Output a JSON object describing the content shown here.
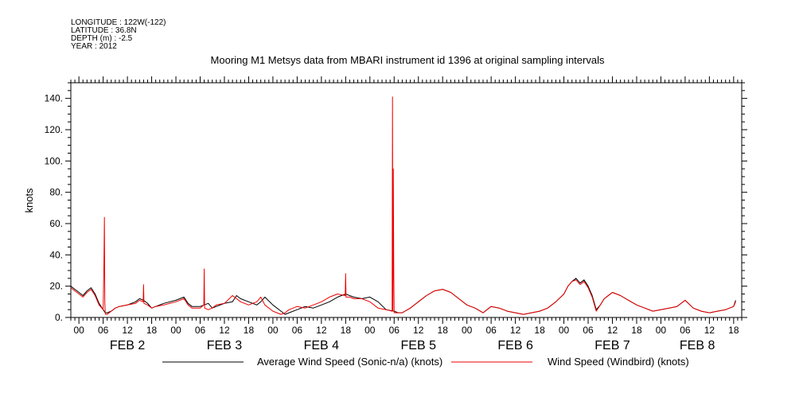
{
  "header": {
    "longitude": "LONGITUDE : 122W(-122)",
    "latitude": "LATITUDE : 36.8N",
    "depth": "DEPTH (m) : -2.5",
    "year": "YEAR : 2012"
  },
  "chart_data": {
    "type": "line",
    "title": "Mooring M1 Metsys data from MBARI instrument id 1396 at original sampling intervals",
    "ylabel": "knots",
    "ylim": [
      0,
      150
    ],
    "yticks": [
      0,
      20,
      40,
      60,
      80,
      100,
      120,
      140
    ],
    "ytick_labels": [
      "0.",
      "20.",
      "40.",
      "60.",
      "80.",
      "100.",
      "120.",
      "140."
    ],
    "xlim_hours": [
      -2,
      164
    ],
    "x_unit": "hours since 2012-02-02 00:00",
    "xtick_hours": [
      0,
      6,
      12,
      18,
      24,
      30,
      36,
      42,
      48,
      54,
      60,
      66,
      72,
      78,
      84,
      90,
      96,
      102,
      108,
      114,
      120,
      126,
      132,
      138,
      144,
      150,
      156,
      162
    ],
    "xtick_labels": [
      "00",
      "06",
      "12",
      "18",
      "00",
      "06",
      "12",
      "18",
      "00",
      "06",
      "12",
      "18",
      "00",
      "06",
      "12",
      "18",
      "00",
      "06",
      "12",
      "18",
      "00",
      "06",
      "12",
      "18",
      "00",
      "06",
      "12",
      "18"
    ],
    "day_labels": [
      {
        "label": "FEB  2",
        "center_hour": 12
      },
      {
        "label": "FEB  3",
        "center_hour": 36
      },
      {
        "label": "FEB  4",
        "center_hour": 60
      },
      {
        "label": "FEB  5",
        "center_hour": 84
      },
      {
        "label": "FEB  6",
        "center_hour": 108
      },
      {
        "label": "FEB  7",
        "center_hour": 132
      },
      {
        "label": "FEB  8",
        "center_hour": 153
      }
    ],
    "grid": false,
    "legend": "bottom",
    "series": [
      {
        "name": "Average Wind Speed (Sonic-n/a) (knots)",
        "color": "#000000",
        "x": [
          -2,
          -1,
          0,
          1,
          2,
          3,
          4,
          5,
          6,
          6.5,
          7,
          8,
          9,
          10,
          12,
          14,
          15,
          16,
          17,
          18,
          19,
          21,
          24,
          26,
          27,
          28,
          30,
          32,
          33,
          34,
          36,
          38,
          39,
          40,
          42,
          44,
          45,
          46,
          48,
          50,
          51,
          52,
          54,
          56,
          58,
          60,
          62,
          64,
          66,
          67,
          68,
          70,
          72,
          74,
          76,
          78,
          79,
          80,
          82,
          84,
          86,
          88,
          90,
          92,
          94,
          96,
          98,
          100,
          102,
          104,
          106,
          108,
          110,
          112,
          114,
          116,
          118,
          120,
          121,
          122,
          123,
          124,
          125,
          126,
          127,
          128,
          129,
          130,
          132,
          134,
          136,
          138,
          140,
          142,
          144,
          146,
          148,
          150,
          152,
          154,
          156,
          158,
          160,
          162,
          162.5
        ],
        "y": [
          20,
          18,
          16,
          14,
          17,
          19,
          15,
          9,
          5,
          3,
          3,
          4,
          6,
          7,
          8,
          10,
          12,
          11,
          9,
          6,
          7,
          9,
          11,
          13,
          9,
          7,
          7,
          9,
          6,
          7,
          9,
          10,
          14,
          12,
          10,
          8,
          10,
          13,
          8,
          4,
          2,
          3,
          5,
          7,
          6,
          8,
          10,
          13,
          15,
          14,
          13,
          12,
          13,
          10,
          5,
          4,
          3,
          3,
          6,
          10,
          14,
          17,
          18,
          16,
          12,
          8,
          6,
          3,
          7,
          6,
          4,
          3,
          2,
          3,
          4,
          6,
          10,
          15,
          20,
          23,
          25,
          22,
          24,
          20,
          14,
          5,
          8,
          12,
          16,
          14,
          11,
          8,
          6,
          4,
          5,
          6,
          7,
          11,
          6,
          4,
          3,
          4,
          5,
          7,
          11
        ]
      },
      {
        "name": "Wind Speed (Windbird) (knots)",
        "color": "#ee0000",
        "x": [
          -2,
          -1,
          0,
          1,
          2,
          3,
          4,
          5,
          6,
          6.2,
          6.3,
          6.4,
          6.5,
          6.6,
          7,
          8,
          9,
          10,
          12,
          14,
          15,
          15.9,
          16,
          16.1,
          17,
          18,
          19,
          21,
          24,
          26,
          27,
          28,
          30,
          30.9,
          31,
          31.1,
          32,
          33,
          34,
          36,
          38,
          39,
          40,
          42,
          44,
          45,
          46,
          48,
          50,
          51,
          52,
          54,
          56,
          58,
          60,
          62,
          64,
          65.9,
          66,
          66.1,
          67,
          68,
          70,
          72,
          74,
          76,
          77.5,
          77.6,
          77.7,
          77.8,
          77.9,
          78,
          79,
          80,
          82,
          84,
          86,
          88,
          90,
          92,
          94,
          96,
          98,
          100,
          102,
          104,
          106,
          108,
          110,
          112,
          114,
          116,
          118,
          120,
          121,
          122,
          123,
          124,
          125,
          126,
          127,
          128,
          129,
          130,
          132,
          134,
          136,
          138,
          140,
          142,
          144,
          146,
          148,
          150,
          152,
          154,
          156,
          158,
          160,
          162,
          162.5
        ],
        "y": [
          19,
          17,
          15,
          13,
          16,
          18,
          14,
          8,
          5,
          34,
          64,
          10,
          3,
          2,
          2,
          4,
          6,
          7,
          8,
          9,
          11,
          10,
          21,
          9,
          8,
          6,
          7,
          8,
          10,
          12,
          8,
          6,
          6,
          8,
          31,
          6,
          5,
          6,
          8,
          9,
          14,
          12,
          10,
          8,
          10,
          13,
          8,
          4,
          2,
          3,
          5,
          7,
          6,
          8,
          10,
          13,
          15,
          14,
          28,
          13,
          13,
          12,
          12,
          10,
          6,
          5,
          4,
          141,
          4,
          95,
          28,
          3,
          3,
          3,
          6,
          10,
          14,
          17,
          18,
          16,
          12,
          8,
          6,
          3,
          7,
          6,
          4,
          3,
          2,
          3,
          4,
          6,
          10,
          15,
          20,
          23,
          24,
          21,
          23,
          19,
          13,
          4,
          8,
          12,
          16,
          14,
          11,
          8,
          6,
          4,
          5,
          6,
          7,
          11,
          6,
          4,
          3,
          4,
          5,
          7,
          10
        ]
      }
    ]
  }
}
